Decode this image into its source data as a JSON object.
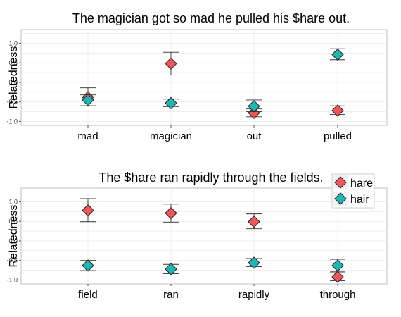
{
  "colors": {
    "hare": "#f0565a",
    "hair": "#1fb6b6",
    "panel_border": "#bfbfbf",
    "grid": "#ebebeb",
    "errorbar": "#333333"
  },
  "legend": {
    "entries": [
      "hare",
      "hair"
    ],
    "placement": "top-right (second panel)"
  },
  "chart_data": [
    {
      "type": "scatter",
      "title": "The magician got so mad he pulled his $hare out.",
      "xlabel": "",
      "ylabel": "Relatedness",
      "ylim": [
        -1.1,
        1.35
      ],
      "yticks": [
        1.0,
        0.5,
        0.0,
        -0.5,
        -1.0
      ],
      "ytick_labels": [
        "1.0",
        "0.5",
        "0.0",
        "-0.5",
        "-1.0"
      ],
      "grid": true,
      "categories": [
        "mad",
        "magician",
        "out",
        "pulled"
      ],
      "series": [
        {
          "name": "hare",
          "values": [
            -0.38,
            0.48,
            -0.78,
            -0.72
          ],
          "err_low": [
            -0.6,
            0.19,
            -0.88,
            -0.82
          ],
          "err_high": [
            -0.14,
            0.77,
            -0.68,
            -0.6
          ]
        },
        {
          "name": "hair",
          "values": [
            -0.45,
            -0.53,
            -0.61,
            0.71
          ],
          "err_low": [
            -0.6,
            -0.62,
            -0.75,
            0.58
          ],
          "err_high": [
            -0.32,
            -0.43,
            -0.45,
            0.86
          ]
        }
      ]
    },
    {
      "type": "scatter",
      "title": "The $hare ran rapidly through the fields.",
      "xlabel": "",
      "ylabel": "Relatedness",
      "ylim": [
        -1.1,
        1.35
      ],
      "yticks": [
        1.0,
        0.5,
        0.0,
        -0.5,
        -1.0
      ],
      "ytick_labels": [
        "1.0",
        "0.5",
        "0.0",
        "-0.5",
        "-1.0"
      ],
      "grid": true,
      "categories": [
        "field",
        "ran",
        "rapidly",
        "through"
      ],
      "series": [
        {
          "name": "hare",
          "values": [
            0.78,
            0.71,
            0.49,
            -0.92
          ],
          "err_low": [
            0.49,
            0.48,
            0.31,
            -1.02
          ],
          "err_high": [
            1.08,
            0.94,
            0.69,
            -0.81
          ]
        },
        {
          "name": "hair",
          "values": [
            -0.63,
            -0.72,
            -0.56,
            -0.63
          ],
          "err_low": [
            -0.76,
            -0.84,
            -0.66,
            -0.78
          ],
          "err_high": [
            -0.5,
            -0.6,
            -0.45,
            -0.47
          ]
        }
      ]
    }
  ]
}
